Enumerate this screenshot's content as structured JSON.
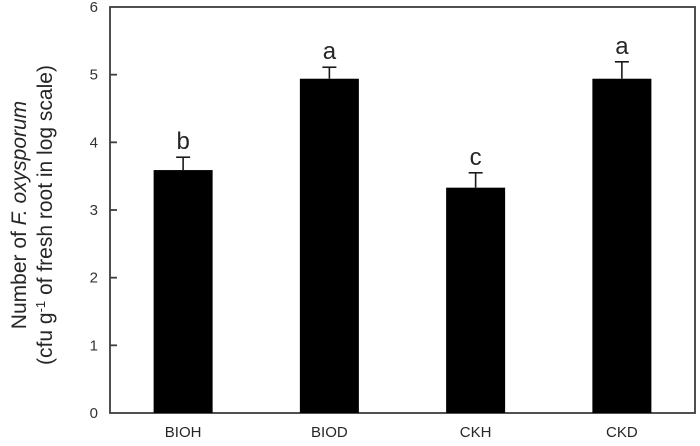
{
  "figure": {
    "background": "#ffffff"
  },
  "chart_data": {
    "type": "bar",
    "title": "",
    "categories": [
      "BIOH",
      "BIOD",
      "CKH",
      "CKD"
    ],
    "series": [
      {
        "name": "Number of F. oxysporum",
        "values": [
          3.59,
          4.94,
          3.33,
          4.94
        ],
        "errors_plus": [
          0.19,
          0.17,
          0.22,
          0.25
        ],
        "sig_letters": [
          "b",
          "a",
          "c",
          "a"
        ]
      }
    ],
    "ylabel": {
      "line1_regular": "Number of ",
      "line1_italic": "F. oxysporum",
      "line2_prefix": "(cfu g",
      "line2_superscript": "-1",
      "line2_suffix": " of fresh root in log scale)"
    },
    "xlabel": "",
    "ylim": [
      0,
      6
    ],
    "ytick_values": [
      0,
      1,
      2,
      3,
      4,
      5,
      6
    ],
    "ytick_labels": [
      "0",
      "1",
      "2",
      "3",
      "4",
      "5",
      "6"
    ],
    "grid": false,
    "legend": false,
    "bar_color": "#000000",
    "axis_color": "#3d3d3d",
    "tick_label_color": "#333333",
    "text_color": "#262626",
    "error_bar_color": "#1a1a1a"
  }
}
